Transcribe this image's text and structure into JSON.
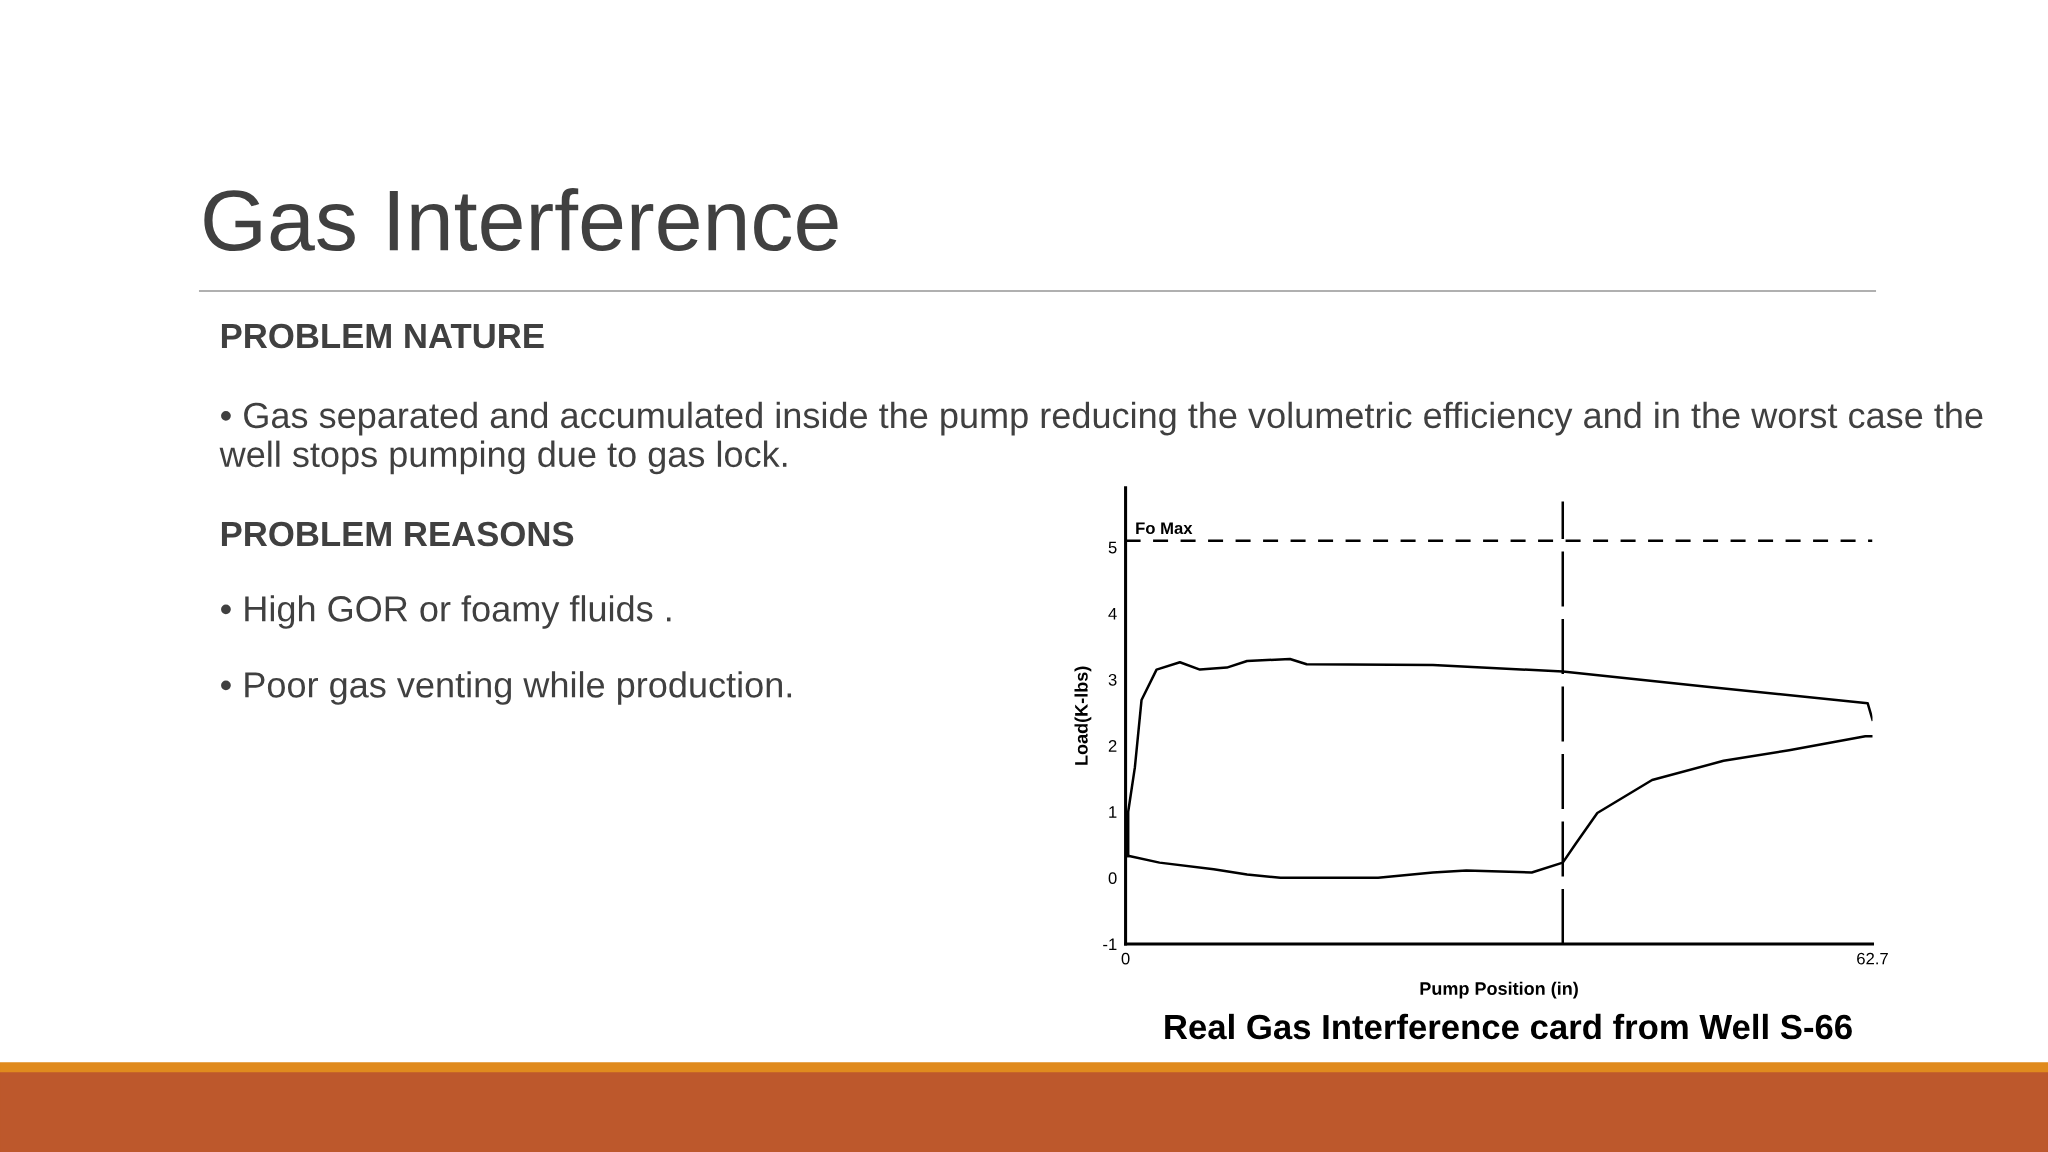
{
  "chart_data": {
    "type": "line",
    "title": "Gas Interference",
    "xlabel": "Pump Position (in)",
    "ylabel": "Load(K-lbs)",
    "annotations": [
      "PROBLEM NATURE",
      "• Gas separated and accumulated inside the pump reducing the volumetric efficiency and in the worst case the well stops pumping due to gas lock.",
      "PROBLEM REASONS",
      "• High GOR or foamy fluids .",
      "• Poor gas venting while production.",
      "Real Gas Interference card from Well S-66"
    ],
    "series": [
      {
        "color": "#000000",
        "x": [
          0.22,
          0.22,
          0.78,
          1.34,
          2.6,
          4.56,
          6.24,
          8.5,
          10.2,
          13.8,
          15.2,
          25.8,
          36.7,
          48.8,
          62.3,
          62.7
        ],
        "values": [
          0.33,
          1.0,
          1.67,
          2.69,
          3.15,
          3.26,
          3.15,
          3.18,
          3.28,
          3.31,
          3.23,
          3.22,
          3.12,
          2.89,
          2.64,
          2.39
        ]
      },
      {
        "color": "#000000",
        "x": [
          0.22,
          0.3,
          2.85,
          7.4,
          10.2,
          13.0,
          21.2,
          25.8,
          28.6,
          34.1,
          36.7,
          37.8,
          39.6,
          44.2,
          50.2,
          55.7,
          62.1,
          62.7
        ],
        "values": [
          0.33,
          0.33,
          0.23,
          0.13,
          0.05,
          0.0,
          0.0,
          0.08,
          0.11,
          0.08,
          0.23,
          0.52,
          0.98,
          1.48,
          1.77,
          1.93,
          2.14,
          2.14
        ]
      }
    ],
    "xlim": [
      0,
      62.7
    ],
    "xticks": [
      0,
      62.7
    ],
    "ylim": [
      -1,
      5.9
    ],
    "yticks": [
      -1,
      0,
      1,
      2,
      3,
      4,
      5
    ],
    "ref_lines": [
      {
        "axis": "y",
        "value": 5.1,
        "label": "Fo Max",
        "line_style": "dashed",
        "color": "#000000"
      },
      {
        "axis": "x",
        "value": 36.7,
        "line_style": "dashed",
        "color": "#000000"
      }
    ],
    "grid": false,
    "legend": false,
    "marker": "none",
    "line_style": "solid"
  }
}
